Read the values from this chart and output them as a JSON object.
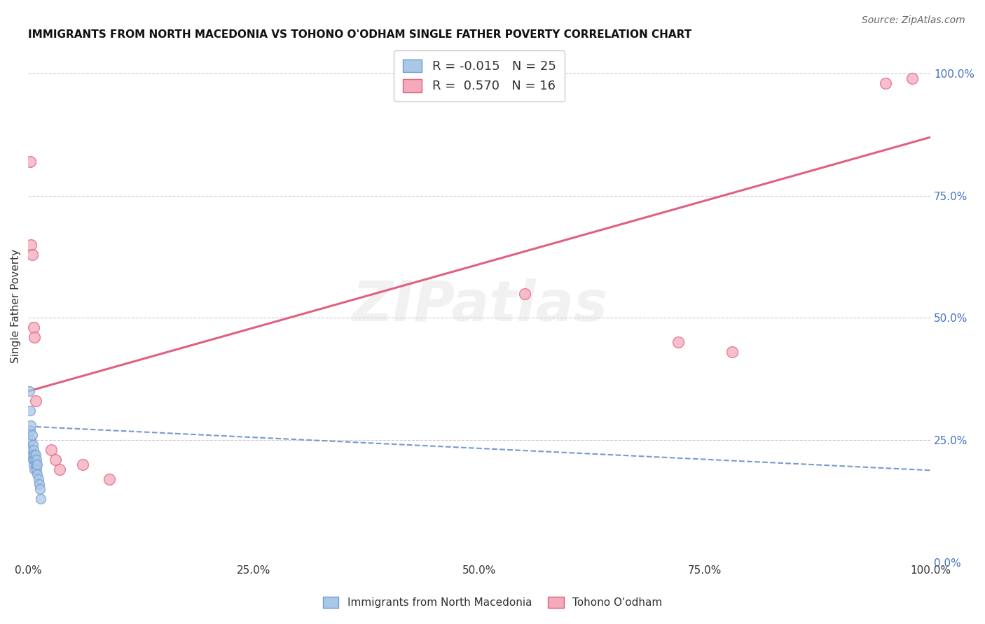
{
  "title": "IMMIGRANTS FROM NORTH MACEDONIA VS TOHONO O'ODHAM SINGLE FATHER POVERTY CORRELATION CHART",
  "source": "Source: ZipAtlas.com",
  "ylabel": "Single Father Poverty",
  "legend_label1": "Immigrants from North Macedonia",
  "legend_label2": "Tohono O'odham",
  "R1": -0.015,
  "N1": 25,
  "R2": 0.57,
  "N2": 16,
  "blue_color": "#a8c8e8",
  "pink_color": "#f4aaba",
  "blue_line_color": "#7799cc",
  "pink_line_color": "#e06080",
  "blue_dot_edge": "#7799cc",
  "pink_dot_edge": "#e06080",
  "watermark": "ZIPatlas",
  "blue_x": [
    0.001,
    0.002,
    0.002,
    0.003,
    0.003,
    0.003,
    0.004,
    0.004,
    0.005,
    0.005,
    0.006,
    0.006,
    0.007,
    0.007,
    0.007,
    0.008,
    0.008,
    0.009,
    0.009,
    0.01,
    0.01,
    0.011,
    0.012,
    0.013,
    0.014
  ],
  "blue_y": [
    0.35,
    0.31,
    0.27,
    0.28,
    0.25,
    0.23,
    0.26,
    0.22,
    0.24,
    0.21,
    0.23,
    0.2,
    0.22,
    0.21,
    0.19,
    0.2,
    0.22,
    0.19,
    0.21,
    0.2,
    0.18,
    0.17,
    0.16,
    0.15,
    0.13
  ],
  "pink_x": [
    0.002,
    0.003,
    0.004,
    0.006,
    0.007,
    0.008,
    0.025,
    0.03,
    0.035,
    0.06,
    0.09,
    0.55,
    0.72,
    0.78,
    0.95,
    0.98
  ],
  "pink_y": [
    0.82,
    0.65,
    0.63,
    0.48,
    0.46,
    0.33,
    0.23,
    0.21,
    0.19,
    0.2,
    0.17,
    0.55,
    0.45,
    0.43,
    0.98,
    0.99
  ],
  "blue_line_x": [
    0.0,
    1.0
  ],
  "blue_line_y": [
    0.278,
    0.188
  ],
  "pink_line_x": [
    0.0,
    1.0
  ],
  "pink_line_y": [
    0.35,
    0.87
  ],
  "xlim": [
    0.0,
    1.0
  ],
  "ylim": [
    0.0,
    1.05
  ],
  "yticks": [
    0.0,
    0.25,
    0.5,
    0.75,
    1.0
  ],
  "xticks": [
    0.0,
    0.25,
    0.5,
    0.75,
    1.0
  ],
  "background_color": "#ffffff",
  "grid_color": "#cccccc"
}
